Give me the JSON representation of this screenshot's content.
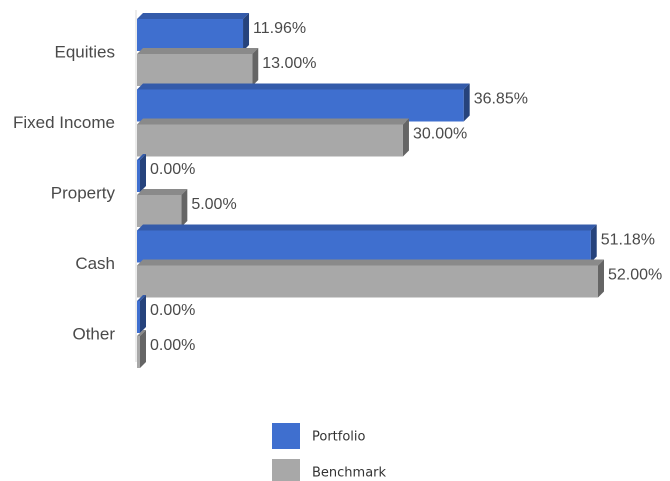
{
  "chart_data": {
    "type": "bar",
    "orientation": "horizontal",
    "three_d": true,
    "categories": [
      "Equities",
      "Fixed Income",
      "Property",
      "Cash",
      "Other"
    ],
    "series": [
      {
        "name": "Portfolio",
        "color": "#3f6fcf",
        "values": [
          11.96,
          36.85,
          0.0,
          51.18,
          0.0
        ],
        "labels": [
          "11.96%",
          "36.85%",
          "0.00%",
          "51.18%",
          "0.00%"
        ]
      },
      {
        "name": "Benchmark",
        "color": "#a8a8a8",
        "values": [
          13.0,
          30.0,
          5.0,
          52.0,
          0.0
        ],
        "labels": [
          "13.00%",
          "30.00%",
          "5.00%",
          "52.00%",
          "0.00%"
        ]
      }
    ],
    "xlim": [
      0,
      52
    ],
    "grid": false,
    "legend_position": "bottom"
  }
}
